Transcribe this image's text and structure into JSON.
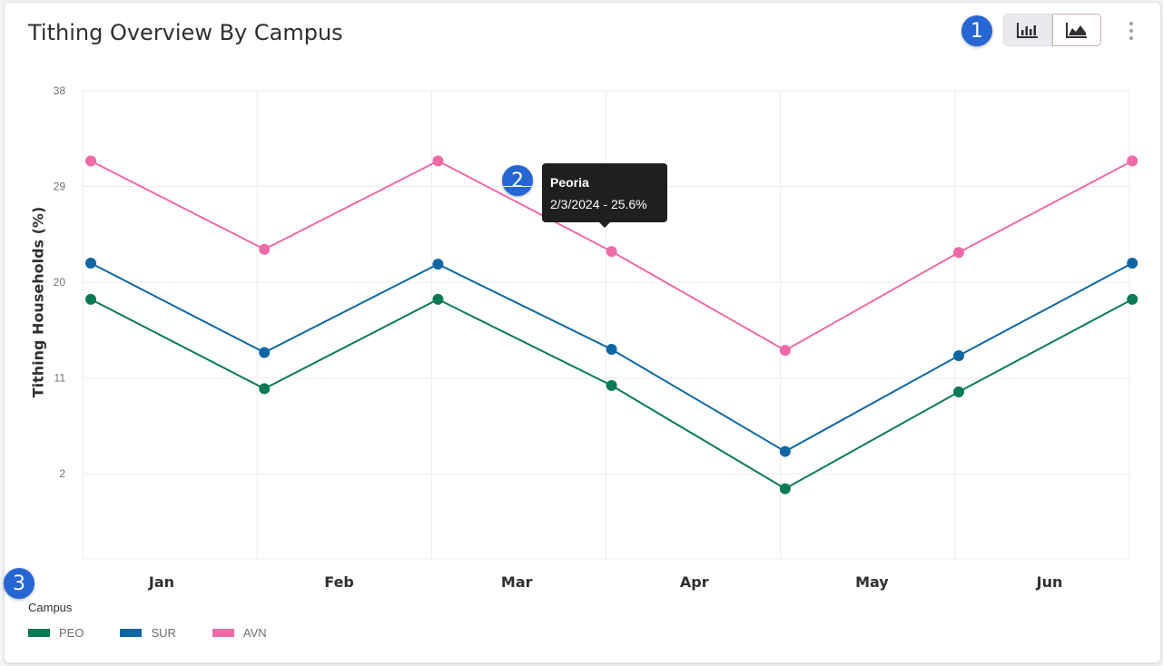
{
  "header": {
    "title": "Tithing Overview By Campus",
    "badges": [
      "1",
      "2",
      "3"
    ],
    "toggle": {
      "bar_icon": "bar-chart-icon",
      "area_icon": "area-chart-icon",
      "selected": "area"
    },
    "menu_icon": "more-vertical-icon"
  },
  "tooltip": {
    "title": "Peoria",
    "value": "2/3/2024 - 25.6%"
  },
  "legend": {
    "title": "Campus",
    "position": "bottom-left",
    "items": [
      {
        "label": "PEO",
        "color": "#0a7a55"
      },
      {
        "label": "SUR",
        "color": "#0e67a3"
      },
      {
        "label": "AVN",
        "color": "#f06aa8"
      }
    ]
  },
  "chart_data": {
    "type": "line",
    "title": "Tithing Overview By Campus",
    "xlabel": "",
    "ylabel": "Tithing Households (%)",
    "x_tick_labels": [
      "Jan",
      "Feb",
      "Mar",
      "Apr",
      "May",
      "Jun"
    ],
    "y_ticks": [
      2,
      11,
      20,
      29,
      38
    ],
    "ylim": [
      -6,
      38
    ],
    "grid": true,
    "series": [
      {
        "name": "PEO",
        "color": "#0a7a55",
        "values": [
          18.4,
          10.0,
          18.4,
          10.3,
          0.6,
          9.7,
          18.4
        ]
      },
      {
        "name": "SUR",
        "color": "#0e67a3",
        "values": [
          21.8,
          13.4,
          21.7,
          13.7,
          4.1,
          13.1,
          21.8
        ]
      },
      {
        "name": "AVN",
        "color": "#f06aa8",
        "values": [
          31.4,
          23.1,
          31.4,
          22.9,
          13.6,
          22.8,
          31.4
        ]
      }
    ]
  }
}
